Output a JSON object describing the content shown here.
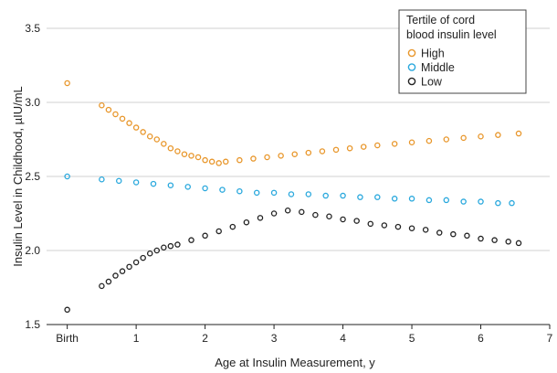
{
  "chart_data": {
    "type": "scatter",
    "xlabel": "Age at Insulin Measurement, y",
    "ylabel": "Insulin Level in Childhood, µIU/mL",
    "xlim": [
      -0.3,
      7
    ],
    "ylim": [
      1.5,
      3.5
    ],
    "x_ticks": [
      {
        "value": 0,
        "label": "Birth"
      },
      {
        "value": 1,
        "label": "1"
      },
      {
        "value": 2,
        "label": "2"
      },
      {
        "value": 3,
        "label": "3"
      },
      {
        "value": 4,
        "label": "4"
      },
      {
        "value": 5,
        "label": "5"
      },
      {
        "value": 6,
        "label": "6"
      },
      {
        "value": 7,
        "label": "7"
      }
    ],
    "y_ticks": [
      {
        "value": 1.5,
        "label": "1.5"
      },
      {
        "value": 2.0,
        "label": "2.0"
      },
      {
        "value": 2.5,
        "label": "2.5"
      },
      {
        "value": 3.0,
        "label": "3.0"
      },
      {
        "value": 3.5,
        "label": "3.5"
      }
    ],
    "grid": "horizontal",
    "legend_placement": "top-right",
    "legend_title_lines": [
      "Tertile of cord",
      "blood insulin level"
    ],
    "series": [
      {
        "name": "High",
        "color": "#e8962a",
        "marker": "open-circle",
        "birth_value": 3.13,
        "points": [
          [
            0.5,
            2.98
          ],
          [
            0.6,
            2.95
          ],
          [
            0.7,
            2.92
          ],
          [
            0.8,
            2.89
          ],
          [
            0.9,
            2.86
          ],
          [
            1.0,
            2.83
          ],
          [
            1.1,
            2.8
          ],
          [
            1.2,
            2.77
          ],
          [
            1.3,
            2.75
          ],
          [
            1.4,
            2.72
          ],
          [
            1.5,
            2.69
          ],
          [
            1.6,
            2.67
          ],
          [
            1.7,
            2.65
          ],
          [
            1.8,
            2.64
          ],
          [
            1.9,
            2.63
          ],
          [
            2.0,
            2.61
          ],
          [
            2.1,
            2.6
          ],
          [
            2.2,
            2.59
          ],
          [
            2.3,
            2.6
          ],
          [
            2.5,
            2.61
          ],
          [
            2.7,
            2.62
          ],
          [
            2.9,
            2.63
          ],
          [
            3.1,
            2.64
          ],
          [
            3.3,
            2.65
          ],
          [
            3.5,
            2.66
          ],
          [
            3.7,
            2.67
          ],
          [
            3.9,
            2.68
          ],
          [
            4.1,
            2.69
          ],
          [
            4.3,
            2.7
          ],
          [
            4.5,
            2.71
          ],
          [
            4.75,
            2.72
          ],
          [
            5.0,
            2.73
          ],
          [
            5.25,
            2.74
          ],
          [
            5.5,
            2.75
          ],
          [
            5.75,
            2.76
          ],
          [
            6.0,
            2.77
          ],
          [
            6.25,
            2.78
          ],
          [
            6.55,
            2.79
          ]
        ]
      },
      {
        "name": "Middle",
        "color": "#29a8dd",
        "marker": "open-circle",
        "birth_value": 2.5,
        "points": [
          [
            0.5,
            2.48
          ],
          [
            0.75,
            2.47
          ],
          [
            1.0,
            2.46
          ],
          [
            1.25,
            2.45
          ],
          [
            1.5,
            2.44
          ],
          [
            1.75,
            2.43
          ],
          [
            2.0,
            2.42
          ],
          [
            2.25,
            2.41
          ],
          [
            2.5,
            2.4
          ],
          [
            2.75,
            2.39
          ],
          [
            3.0,
            2.39
          ],
          [
            3.25,
            2.38
          ],
          [
            3.5,
            2.38
          ],
          [
            3.75,
            2.37
          ],
          [
            4.0,
            2.37
          ],
          [
            4.25,
            2.36
          ],
          [
            4.5,
            2.36
          ],
          [
            4.75,
            2.35
          ],
          [
            5.0,
            2.35
          ],
          [
            5.25,
            2.34
          ],
          [
            5.5,
            2.34
          ],
          [
            5.75,
            2.33
          ],
          [
            6.0,
            2.33
          ],
          [
            6.25,
            2.32
          ],
          [
            6.45,
            2.32
          ]
        ]
      },
      {
        "name": "Low",
        "color": "#222222",
        "marker": "open-circle",
        "birth_value": 1.6,
        "points": [
          [
            0.5,
            1.76
          ],
          [
            0.6,
            1.79
          ],
          [
            0.7,
            1.83
          ],
          [
            0.8,
            1.86
          ],
          [
            0.9,
            1.89
          ],
          [
            1.0,
            1.92
          ],
          [
            1.1,
            1.95
          ],
          [
            1.2,
            1.98
          ],
          [
            1.3,
            2.0
          ],
          [
            1.4,
            2.02
          ],
          [
            1.5,
            2.03
          ],
          [
            1.6,
            2.04
          ],
          [
            1.8,
            2.07
          ],
          [
            2.0,
            2.1
          ],
          [
            2.2,
            2.13
          ],
          [
            2.4,
            2.16
          ],
          [
            2.6,
            2.19
          ],
          [
            2.8,
            2.22
          ],
          [
            3.0,
            2.25
          ],
          [
            3.2,
            2.27
          ],
          [
            3.4,
            2.26
          ],
          [
            3.6,
            2.24
          ],
          [
            3.8,
            2.23
          ],
          [
            4.0,
            2.21
          ],
          [
            4.2,
            2.2
          ],
          [
            4.4,
            2.18
          ],
          [
            4.6,
            2.17
          ],
          [
            4.8,
            2.16
          ],
          [
            5.0,
            2.15
          ],
          [
            5.2,
            2.14
          ],
          [
            5.4,
            2.12
          ],
          [
            5.6,
            2.11
          ],
          [
            5.8,
            2.1
          ],
          [
            6.0,
            2.08
          ],
          [
            6.2,
            2.07
          ],
          [
            6.4,
            2.06
          ],
          [
            6.55,
            2.05
          ]
        ]
      }
    ]
  }
}
